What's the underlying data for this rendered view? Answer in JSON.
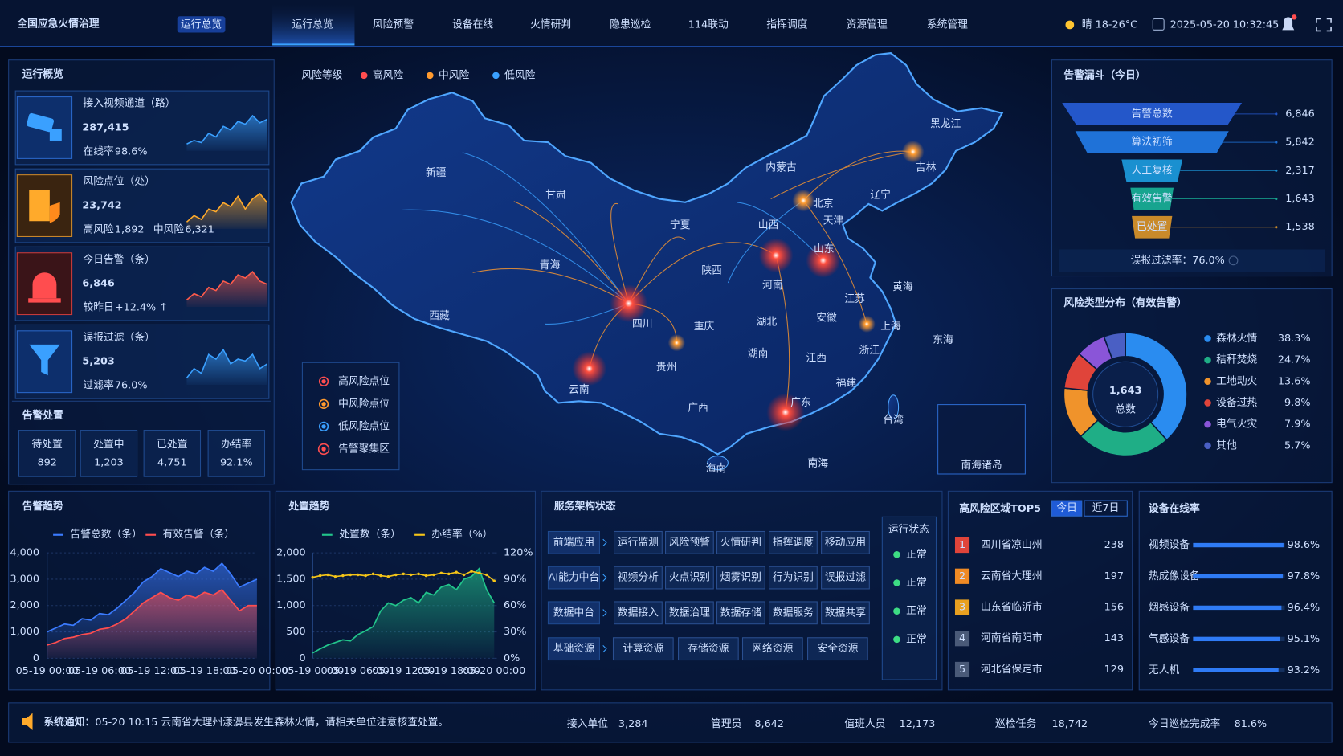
{
  "header": {
    "title": "全国应急火情治理",
    "badge": "运行总览",
    "nav": [
      "运行总览",
      "风险预警",
      "设备在线",
      "火情研判",
      "隐患巡检",
      "114联动",
      "指挥调度",
      "资源管理",
      "系统管理"
    ],
    "weather": "晴 18-26°C",
    "datetime": "2025-05-20 10:32:45"
  },
  "overview": {
    "title": "运行概览",
    "kpis": [
      {
        "label": "接入视频通道（路）",
        "value": "287,415",
        "subs": [
          {
            "label": "在线率",
            "value": "98.6%"
          }
        ]
      },
      {
        "label": "风险点位（处）",
        "value": "23,742",
        "subs": [
          {
            "label": "高风险",
            "value": "1,892"
          },
          {
            "label": "中风险",
            "value": "6,321"
          }
        ]
      },
      {
        "label": "今日告警（条）",
        "value": "6,846",
        "subs": [
          {
            "label": "较昨日",
            "value": "+12.4% ↑"
          }
        ]
      },
      {
        "label": "误报过滤（条）",
        "value": "5,203",
        "subs": [
          {
            "label": "过滤率",
            "value": "76.0%"
          }
        ]
      }
    ]
  },
  "disposal": {
    "title": "告警处置",
    "items": [
      {
        "label": "待处置",
        "value": "892"
      },
      {
        "label": "处置中",
        "value": "1,203"
      },
      {
        "label": "已处置",
        "value": "4,751"
      },
      {
        "label": "办结率",
        "value": "92.1%"
      }
    ]
  },
  "map": {
    "legend_title": "风险等级",
    "levels": [
      {
        "name": "高风险",
        "color": "#ff4d4f"
      },
      {
        "name": "中风险",
        "color": "#ff9a2e"
      },
      {
        "name": "低风险",
        "color": "#3aa0ff"
      }
    ],
    "point_legend": [
      {
        "name": "高风险点位",
        "color": "#ff4d4f"
      },
      {
        "name": "中风险点位",
        "color": "#ff9a2e"
      },
      {
        "name": "低风险点位",
        "color": "#3aa0ff"
      },
      {
        "name": "告警聚集区",
        "color": "#ff4d4f"
      }
    ],
    "labels": [
      "新疆",
      "甘肃",
      "青海",
      "西藏",
      "四川",
      "云南",
      "宁夏",
      "陕西",
      "重庆",
      "贵州",
      "广西",
      "海南",
      "内蒙古",
      "山西",
      "北京",
      "天津",
      "山东",
      "河南",
      "湖北",
      "湖南",
      "江西",
      "安徽",
      "江苏",
      "上海",
      "浙江",
      "福建",
      "广东",
      "台湾",
      "辽宁",
      "吉林",
      "黑龙江",
      "黄海",
      "东海",
      "南海"
    ],
    "inset": "南海诸岛"
  },
  "architecture": {
    "title": "服务架构状态",
    "layers": [
      {
        "name": "前端应用",
        "modules": [
          "运行监测",
          "风险预警",
          "火情研判",
          "指挥调度",
          "移动应用"
        ]
      },
      {
        "name": "AI能力中台",
        "modules": [
          "视频分析",
          "火点识别",
          "烟雾识别",
          "行为识别",
          "误报过滤"
        ]
      },
      {
        "name": "数据中台",
        "modules": [
          "数据接入",
          "数据治理",
          "数据存储",
          "数据服务",
          "数据共享"
        ]
      },
      {
        "name": "基础资源",
        "modules": [
          "计算资源",
          "存储资源",
          "网络资源",
          "安全资源"
        ]
      }
    ],
    "status_title": "运行状态",
    "statuses": [
      "正常",
      "正常",
      "正常",
      "正常"
    ]
  },
  "top5": {
    "title": "高风险区域TOP5",
    "tabs": [
      "今日",
      "近7日"
    ],
    "rows": [
      {
        "rank": 1,
        "name": "四川省凉山州",
        "value": 238
      },
      {
        "rank": 2,
        "name": "云南省大理州",
        "value": 197
      },
      {
        "rank": 3,
        "name": "山东省临沂市",
        "value": 156
      },
      {
        "rank": 4,
        "name": "河南省南阳市",
        "value": 143
      },
      {
        "rank": 5,
        "name": "河北省保定市",
        "value": 129
      }
    ]
  },
  "footer": {
    "notice_label": "系统通知：",
    "notice": "05-20 10:15 云南省大理州漾濞县发生森林火情，请相关单位注意核查处置。",
    "stats": [
      {
        "label": "接入单位",
        "value": "3,284"
      },
      {
        "label": "管理员",
        "value": "8,642"
      },
      {
        "label": "值班人员",
        "value": "12,173"
      },
      {
        "label": "巡检任务",
        "value": "18,742"
      },
      {
        "label": "今日巡检完成率",
        "value": "81.6%"
      }
    ]
  },
  "chart_data": [
    {
      "type": "line",
      "title": "告警趋势",
      "categories": [
        "05-19 00:00",
        null,
        null,
        null,
        null,
        null,
        "05-19 06:00",
        null,
        null,
        null,
        null,
        null,
        "05-19 12:00",
        null,
        null,
        null,
        null,
        null,
        "05-19 18:00",
        null,
        null,
        null,
        null,
        null,
        "05-20 00:00"
      ],
      "series": [
        {
          "name": "告警总数（条）",
          "color": "#3b7bff",
          "area": true,
          "values": [
            1000,
            1150,
            1300,
            1250,
            1500,
            1450,
            1700,
            1650,
            1900,
            2200,
            2500,
            2900,
            3100,
            3400,
            3250,
            3100,
            3300,
            3200,
            3450,
            3300,
            3600,
            3200,
            2700,
            2850,
            3000
          ]
        },
        {
          "name": "有效告警（条）",
          "color": "#ff4d4f",
          "area": true,
          "values": [
            500,
            600,
            750,
            800,
            900,
            950,
            1100,
            1150,
            1300,
            1500,
            1800,
            2100,
            2300,
            2500,
            2300,
            2200,
            2400,
            2300,
            2500,
            2400,
            2600,
            2200,
            1800,
            2000,
            2000
          ]
        }
      ],
      "ylim": [
        0,
        4000
      ],
      "yticks": [
        0,
        {
          "value": 1000,
          "label": "1,000"
        },
        {
          "value": 2000,
          "label": "2,000"
        },
        {
          "value": 3000,
          "label": "3,000"
        },
        {
          "value": 4000,
          "label": "4,000"
        }
      ],
      "grid": true
    },
    {
      "type": "line",
      "title": "处置趋势",
      "categories": [
        "05-19 00:00",
        null,
        null,
        null,
        null,
        null,
        "05-19 06:00",
        null,
        null,
        null,
        null,
        null,
        "05-19 12:00",
        null,
        null,
        null,
        null,
        null,
        "05-19 18:00",
        null,
        null,
        null,
        null,
        null,
        "05-20 00:00"
      ],
      "series": [
        {
          "name": "处置数（条）",
          "color": "#22c58b",
          "area": true,
          "values": [
            100,
            180,
            250,
            300,
            350,
            330,
            450,
            520,
            600,
            900,
            1050,
            1000,
            1100,
            1150,
            1050,
            1250,
            1200,
            1350,
            1400,
            1300,
            1500,
            1550,
            1700,
            1300,
            1050
          ]
        },
        {
          "name": "办结率（%）",
          "color": "#f5c518",
          "axis": "y2",
          "markers": true,
          "values": [
            92,
            94,
            95,
            93,
            94,
            95,
            95,
            94,
            96,
            94,
            93,
            95,
            96,
            95,
            96,
            94,
            95,
            97,
            96,
            98,
            95,
            99,
            97,
            95,
            88
          ]
        }
      ],
      "ylim": [
        0,
        2000
      ],
      "yticks": [
        0,
        500,
        {
          "value": 1000,
          "label": "1,000"
        },
        {
          "value": 1500,
          "label": "1,500"
        },
        {
          "value": 2000,
          "label": "2,000"
        }
      ],
      "y2lim": [
        0,
        120
      ],
      "y2ticks": [
        {
          "value": 0,
          "label": "0%"
        },
        {
          "value": 30,
          "label": "30%"
        },
        {
          "value": 60,
          "label": "60%"
        },
        {
          "value": 90,
          "label": "90%"
        },
        {
          "value": 120,
          "label": "120%"
        }
      ],
      "grid": true
    },
    {
      "type": "pie",
      "title": "风险类型分布（有效告警）",
      "categories": [
        "森林火情",
        "秸秆焚烧",
        "工地动火",
        "设备过热",
        "电气火灾",
        "其他"
      ],
      "values": [
        38.3,
        24.7,
        13.6,
        9.8,
        7.9,
        5.7
      ],
      "value_labels": [
        "38.3%",
        "24.7%",
        "13.6%",
        "9.8%",
        "7.9%",
        "5.7%"
      ],
      "colors": [
        "#2a8cf0",
        "#1fae86",
        "#f0932b",
        "#e0443a",
        "#8a55d8",
        "#4a5fc4"
      ],
      "center_value": "1,643",
      "center_label": "总数"
    },
    {
      "type": "funnel",
      "title": "告警漏斗（今日）",
      "categories": [
        "告警总数",
        "算法初筛",
        "人工复核",
        "有效告警",
        "已处置"
      ],
      "values": [
        6846,
        5842,
        2317,
        1643,
        1538
      ],
      "value_labels": [
        "6,846",
        "5,842",
        "2,317",
        "1,643",
        "1,538"
      ],
      "colors": [
        "#2457c9",
        "#1f72d8",
        "#1a90d0",
        "#17a48f",
        "#c98a2a"
      ],
      "footnote": "误报过滤率：76.0%"
    },
    {
      "type": "hbar",
      "title": "设备在线率",
      "categories": [
        "视频设备",
        "热成像设备",
        "烟感设备",
        "气感设备",
        "无人机"
      ],
      "values": [
        98.6,
        97.8,
        96.4,
        95.1,
        93.2
      ],
      "value_labels": [
        "98.6%",
        "97.8%",
        "96.4%",
        "95.1%",
        "93.2%"
      ],
      "xlim": [
        0,
        100
      ],
      "color": "#2f7bf5"
    },
    {
      "type": "sparkline",
      "color": "#3aa0ff",
      "values": [
        30,
        35,
        32,
        45,
        40,
        55,
        50,
        62,
        58,
        70,
        60,
        65
      ]
    },
    {
      "type": "sparkline",
      "color": "#ffaa2b",
      "values": [
        40,
        45,
        42,
        50,
        48,
        55,
        52,
        60,
        50,
        58,
        62,
        55
      ]
    },
    {
      "type": "sparkline",
      "color": "#ff5b4b",
      "values": [
        20,
        30,
        25,
        40,
        35,
        50,
        45,
        60,
        55,
        65,
        50,
        45
      ]
    },
    {
      "type": "sparkline",
      "color": "#3aa0ff",
      "values": [
        30,
        40,
        35,
        55,
        50,
        60,
        45,
        50,
        48,
        55,
        40,
        45
      ]
    }
  ]
}
